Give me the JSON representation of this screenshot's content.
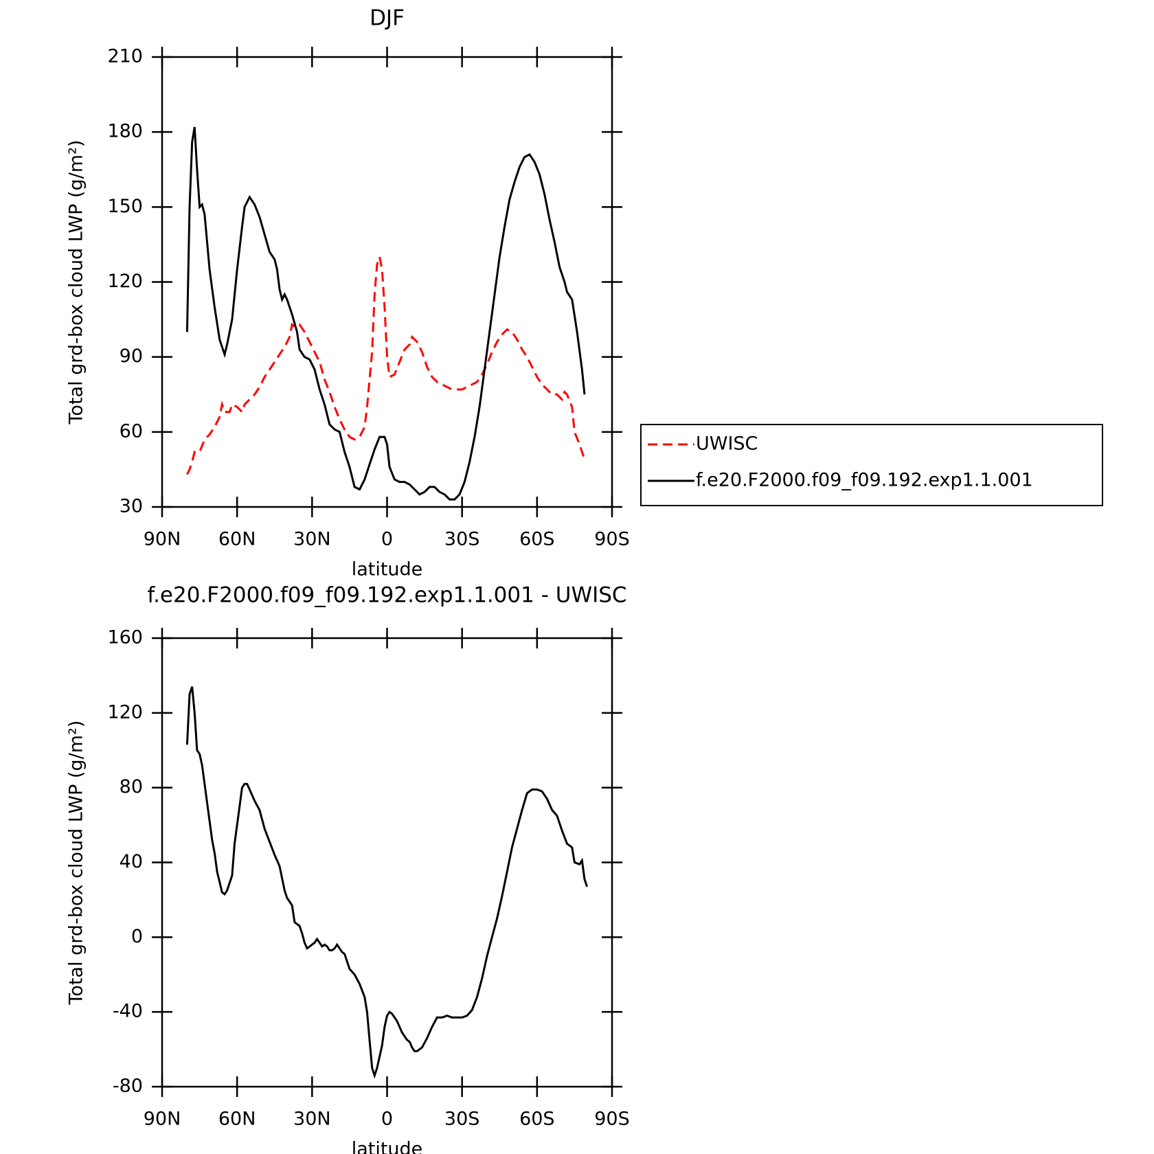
{
  "chart_data": [
    {
      "type": "line",
      "title": "DJF",
      "xlabel": "latitude",
      "ylabel": "Total grd-box cloud LWP (g/m²)",
      "xlim": [
        90,
        -90
      ],
      "xticks": [
        {
          "value": 90,
          "label": "90N"
        },
        {
          "value": 60,
          "label": "60N"
        },
        {
          "value": 30,
          "label": "30N"
        },
        0,
        {
          "value": -30,
          "label": "30S"
        },
        {
          "value": -60,
          "label": "60S"
        },
        {
          "value": -90,
          "label": "90S"
        }
      ],
      "ylim": [
        30,
        210
      ],
      "yticks": [
        30,
        60,
        90,
        120,
        150,
        180,
        210
      ],
      "legend": "right",
      "series": [
        {
          "name": "UWISC",
          "color": "#ff0000",
          "line_style": "dashed",
          "x": [
            80,
            79,
            78,
            77,
            75,
            73,
            71,
            69,
            67,
            66,
            65,
            63,
            62,
            60,
            58,
            57,
            55,
            53,
            51,
            49,
            47,
            45,
            43,
            41,
            39,
            38,
            37,
            35,
            33,
            31,
            29,
            27,
            25,
            23,
            21,
            19,
            17,
            15,
            13,
            11,
            9,
            8,
            6,
            5,
            4,
            3,
            2,
            1,
            0,
            -1,
            -3,
            -5,
            -7,
            -9,
            -10,
            -12,
            -14,
            -16,
            -18,
            -20,
            -22,
            -24,
            -26,
            -28,
            -30,
            -32,
            -34,
            -36,
            -38,
            -40,
            -42,
            -44,
            -46,
            -48,
            -50,
            -52,
            -54,
            -56,
            -58,
            -60,
            -62,
            -64,
            -66,
            -68,
            -70,
            -71,
            -72,
            -74,
            -75,
            -77,
            -79
          ],
          "values": [
            43,
            45,
            48,
            52,
            52,
            57,
            59,
            62,
            66,
            71,
            68,
            68,
            71,
            70,
            68,
            71,
            73,
            75,
            78,
            82,
            85,
            88,
            91,
            94,
            98,
            103,
            102,
            103,
            100,
            96,
            92,
            88,
            81,
            76,
            70,
            65,
            61,
            58,
            57,
            58,
            62,
            70,
            92,
            115,
            127,
            130,
            125,
            110,
            90,
            82,
            83,
            88,
            93,
            95,
            98,
            96,
            92,
            86,
            82,
            80,
            79,
            78,
            77,
            77,
            77,
            78,
            79,
            80,
            83,
            87,
            92,
            96,
            99,
            101,
            100,
            97,
            93,
            90,
            86,
            82,
            79,
            77,
            75,
            75,
            73,
            76,
            75,
            70,
            60,
            55,
            49
          ]
        },
        {
          "name": "f.e20.F2000.f09_f09.192.exp1.1.001",
          "color": "#000000",
          "line_style": "solid",
          "x": [
            80,
            79,
            78,
            77,
            76,
            75,
            74,
            73,
            71,
            69,
            67,
            66,
            65,
            64,
            62,
            60,
            58,
            57,
            55,
            53,
            51,
            49,
            47,
            45,
            44,
            43,
            42,
            41,
            40,
            38,
            36,
            35,
            33,
            31,
            29,
            27,
            25,
            23,
            21,
            19,
            17,
            15,
            13,
            11,
            9,
            7,
            5,
            3,
            1,
            0,
            -1,
            -3,
            -5,
            -7,
            -9,
            -11,
            -13,
            -15,
            -17,
            -19,
            -21,
            -23,
            -25,
            -27,
            -29,
            -31,
            -33,
            -35,
            -37,
            -39,
            -41,
            -43,
            -45,
            -47,
            -49,
            -51,
            -53,
            -55,
            -57,
            -59,
            -61,
            -63,
            -65,
            -67,
            -69,
            -71,
            -72,
            -74,
            -76,
            -78,
            -79
          ],
          "values": [
            100,
            150,
            176,
            182,
            165,
            150,
            151,
            147,
            125,
            110,
            97,
            94,
            91,
            95,
            105,
            125,
            142,
            150,
            154,
            151,
            146,
            139,
            132,
            129,
            125,
            117,
            113,
            115,
            113,
            107,
            100,
            93,
            90,
            89,
            85,
            77,
            71,
            63,
            61,
            60,
            52,
            46,
            38,
            37,
            41,
            47,
            53,
            58,
            58,
            55,
            46,
            41,
            40,
            40,
            39,
            37,
            35,
            36,
            38,
            38,
            36,
            35,
            33,
            33,
            35,
            40,
            48,
            58,
            70,
            85,
            100,
            115,
            130,
            142,
            153,
            160,
            166,
            170,
            171,
            168,
            163,
            155,
            145,
            136,
            126,
            120,
            116,
            113,
            100,
            85,
            75
          ]
        }
      ]
    },
    {
      "type": "line",
      "title": "f.e20.F2000.f09_f09.192.exp1.1.001 - UWISC",
      "xlabel": "latitude",
      "ylabel": "Total grd-box cloud LWP (g/m²)",
      "xlim": [
        90,
        -90
      ],
      "xticks": [
        {
          "value": 90,
          "label": "90N"
        },
        {
          "value": 60,
          "label": "60N"
        },
        {
          "value": 30,
          "label": "30N"
        },
        0,
        {
          "value": -30,
          "label": "30S"
        },
        {
          "value": -60,
          "label": "60S"
        },
        {
          "value": -90,
          "label": "90S"
        }
      ],
      "ylim": [
        -80,
        160
      ],
      "yticks": [
        -80,
        -40,
        0,
        40,
        80,
        120,
        160
      ],
      "series": [
        {
          "color": "#000000",
          "line_style": "solid",
          "x": [
            80,
            79,
            78,
            77,
            76,
            75,
            74,
            72,
            70,
            69,
            68,
            66,
            65,
            64,
            62,
            61,
            59,
            58,
            57,
            56,
            55,
            53,
            51,
            49,
            47,
            45,
            43,
            41,
            40,
            38,
            37,
            35,
            34,
            33,
            32,
            31,
            30,
            29,
            28,
            27,
            26,
            25,
            24,
            23,
            22,
            21,
            20,
            19,
            18,
            17,
            16,
            15,
            13,
            11,
            9,
            8,
            7,
            6,
            5,
            4,
            2,
            1,
            0,
            -1,
            -2,
            -4,
            -6,
            -8,
            -9,
            -10,
            -11,
            -12,
            -14,
            -16,
            -18,
            -20,
            -22,
            -24,
            -26,
            -28,
            -30,
            -32,
            -34,
            -36,
            -38,
            -40,
            -42,
            -44,
            -46,
            -48,
            -50,
            -52,
            -54,
            -56,
            -58,
            -60,
            -62,
            -64,
            -66,
            -68,
            -70,
            -72,
            -74,
            -75,
            -77,
            -78,
            -79,
            -80
          ],
          "values": [
            103,
            130,
            134,
            120,
            100,
            98,
            92,
            72,
            52,
            45,
            35,
            24,
            23,
            25,
            33,
            50,
            70,
            80,
            82,
            82,
            79,
            73,
            68,
            58,
            51,
            44,
            38,
            25,
            21,
            17,
            8,
            6,
            2,
            -3,
            -6,
            -5,
            -4,
            -3,
            -1,
            -3,
            -5,
            -4,
            -5,
            -7,
            -7,
            -6,
            -4,
            -6,
            -8,
            -9,
            -13,
            -17,
            -20,
            -25,
            -32,
            -40,
            -55,
            -70,
            -74,
            -70,
            -58,
            -48,
            -42,
            -40,
            -41,
            -45,
            -51,
            -55,
            -56,
            -59,
            -61,
            -61,
            -59,
            -54,
            -48,
            -43,
            -43,
            -42,
            -43,
            -43,
            -43,
            -42,
            -39,
            -32,
            -22,
            -10,
            0,
            10,
            22,
            35,
            48,
            58,
            68,
            77,
            79,
            79,
            78,
            74,
            68,
            65,
            57,
            50,
            48,
            40,
            39,
            41,
            31,
            27
          ]
        }
      ]
    }
  ]
}
